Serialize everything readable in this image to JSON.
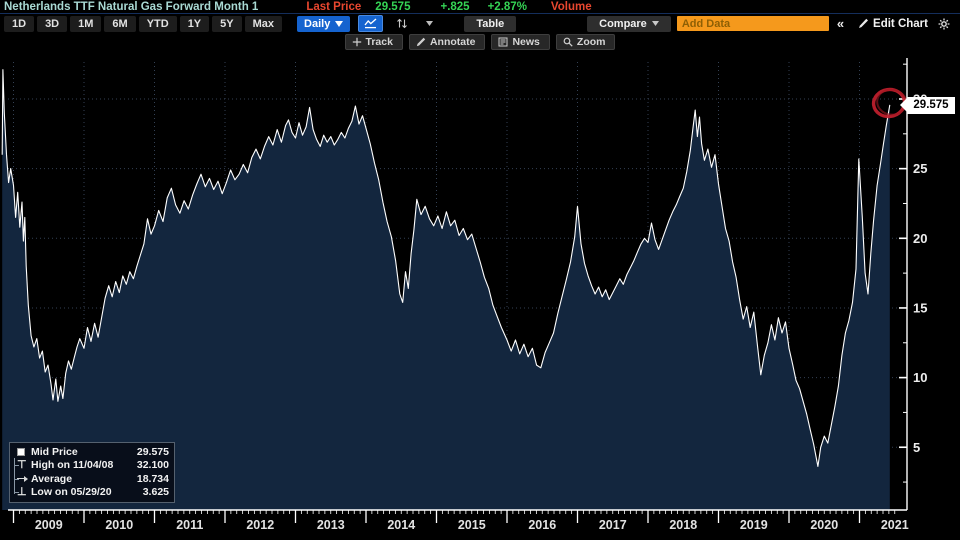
{
  "header": {
    "title": "Netherlands TTF Natural Gas Forward Month 1",
    "last_price_label": "Last Price",
    "last_price": "29.575",
    "change": "+.825",
    "change_pct": "+2.87%",
    "volume_label": "Volume"
  },
  "toolbar": {
    "periods": [
      "1D",
      "3D",
      "1M",
      "6M",
      "YTD",
      "1Y",
      "5Y",
      "Max"
    ],
    "frequency": "Daily",
    "table_label": "Table",
    "compare_label": "Compare",
    "add_data_placeholder": "Add Data",
    "collapse_label": "«",
    "edit_chart_label": "Edit Chart"
  },
  "chart_toolbar": {
    "buttons": [
      {
        "label": "Track",
        "icon": "track-icon"
      },
      {
        "label": "Annotate",
        "icon": "annotate-pencil-icon"
      },
      {
        "label": "News",
        "icon": "news-icon"
      },
      {
        "label": "Zoom",
        "icon": "zoom-magnifier-icon"
      }
    ]
  },
  "legend": {
    "items": [
      {
        "marker": "square",
        "label": "Mid Price",
        "value": "29.575"
      },
      {
        "marker": "high",
        "label": "High on 11/04/08",
        "value": "32.100"
      },
      {
        "marker": "average",
        "label": "Average",
        "value": "18.734"
      },
      {
        "marker": "low",
        "label": "Low on 05/29/20",
        "value": "3.625"
      }
    ]
  },
  "price_tag": "29.575",
  "colors": {
    "background": "#000000",
    "area_fill": "#13263e",
    "line": "#ffffff",
    "grid": "#41526a",
    "axis": "#ffffff",
    "axis_text": "#ededed",
    "annotation_red": "#c2202e",
    "title_teal": "#a9d9d3",
    "label_red": "#e8472f",
    "value_green": "#35d455",
    "accent_blue": "#1563cf",
    "accent_orange": "#f5991c"
  },
  "chart_data": {
    "type": "area",
    "title": "Netherlands TTF Natural Gas Forward Month 1 - Mid Price (Daily)",
    "xlabel": "",
    "ylabel": "",
    "x_ticks": [
      2009,
      2010,
      2011,
      2012,
      2013,
      2014,
      2015,
      2016,
      2017,
      2018,
      2019,
      2020,
      2021
    ],
    "y_ticks": [
      5,
      10,
      15,
      20,
      25,
      30
    ],
    "y_minor_step": 2.5,
    "xlim": [
      2008.83,
      2021.5
    ],
    "ylim": [
      0,
      33
    ],
    "grid": true,
    "legend_position": "bottom-left",
    "stats": {
      "last": 29.575,
      "high": 32.1,
      "high_date": "11/04/08",
      "average": 18.734,
      "low": 3.625,
      "low_date": "05/29/20"
    },
    "annotation": {
      "type": "hand-drawn-circle",
      "x": 2021.43,
      "y": 29.575
    },
    "series": [
      {
        "name": "Mid Price",
        "points": [
          [
            2008.84,
            26.0
          ],
          [
            2008.85,
            32.1
          ],
          [
            2008.87,
            29.0
          ],
          [
            2008.9,
            26.0
          ],
          [
            2008.93,
            24.0
          ],
          [
            2008.96,
            25.0
          ],
          [
            2009.0,
            23.8
          ],
          [
            2009.03,
            21.5
          ],
          [
            2009.06,
            23.3
          ],
          [
            2009.09,
            20.8
          ],
          [
            2009.12,
            22.6
          ],
          [
            2009.14,
            19.8
          ],
          [
            2009.16,
            21.5
          ],
          [
            2009.18,
            18.0
          ],
          [
            2009.21,
            15.2
          ],
          [
            2009.25,
            13.0
          ],
          [
            2009.29,
            12.2
          ],
          [
            2009.33,
            12.8
          ],
          [
            2009.37,
            11.4
          ],
          [
            2009.41,
            11.9
          ],
          [
            2009.45,
            10.4
          ],
          [
            2009.49,
            10.9
          ],
          [
            2009.53,
            9.6
          ],
          [
            2009.56,
            8.4
          ],
          [
            2009.6,
            9.9
          ],
          [
            2009.63,
            8.3
          ],
          [
            2009.67,
            9.4
          ],
          [
            2009.7,
            8.5
          ],
          [
            2009.74,
            10.3
          ],
          [
            2009.78,
            11.2
          ],
          [
            2009.82,
            10.6
          ],
          [
            2009.86,
            11.4
          ],
          [
            2009.9,
            12.2
          ],
          [
            2009.94,
            12.8
          ],
          [
            2010.0,
            12.1
          ],
          [
            2010.05,
            13.6
          ],
          [
            2010.1,
            12.6
          ],
          [
            2010.15,
            13.9
          ],
          [
            2010.2,
            12.9
          ],
          [
            2010.25,
            14.3
          ],
          [
            2010.3,
            15.7
          ],
          [
            2010.35,
            16.6
          ],
          [
            2010.4,
            15.8
          ],
          [
            2010.45,
            16.9
          ],
          [
            2010.5,
            16.1
          ],
          [
            2010.55,
            17.3
          ],
          [
            2010.6,
            16.7
          ],
          [
            2010.65,
            17.6
          ],
          [
            2010.7,
            17.1
          ],
          [
            2010.75,
            18.0
          ],
          [
            2010.8,
            18.8
          ],
          [
            2010.85,
            19.6
          ],
          [
            2010.9,
            21.4
          ],
          [
            2010.95,
            20.3
          ],
          [
            2011.0,
            20.9
          ],
          [
            2011.06,
            22.0
          ],
          [
            2011.12,
            21.2
          ],
          [
            2011.18,
            22.9
          ],
          [
            2011.24,
            23.6
          ],
          [
            2011.3,
            22.4
          ],
          [
            2011.36,
            21.8
          ],
          [
            2011.42,
            22.7
          ],
          [
            2011.48,
            22.1
          ],
          [
            2011.54,
            23.1
          ],
          [
            2011.6,
            23.9
          ],
          [
            2011.66,
            24.6
          ],
          [
            2011.72,
            23.7
          ],
          [
            2011.78,
            24.3
          ],
          [
            2011.84,
            23.5
          ],
          [
            2011.9,
            24.1
          ],
          [
            2011.96,
            23.2
          ],
          [
            2012.02,
            24.0
          ],
          [
            2012.08,
            24.9
          ],
          [
            2012.14,
            24.2
          ],
          [
            2012.2,
            24.6
          ],
          [
            2012.26,
            25.3
          ],
          [
            2012.32,
            24.7
          ],
          [
            2012.38,
            25.8
          ],
          [
            2012.44,
            26.4
          ],
          [
            2012.5,
            25.7
          ],
          [
            2012.56,
            26.6
          ],
          [
            2012.62,
            27.3
          ],
          [
            2012.68,
            26.7
          ],
          [
            2012.74,
            27.8
          ],
          [
            2012.8,
            26.9
          ],
          [
            2012.86,
            28.1
          ],
          [
            2012.9,
            28.5
          ],
          [
            2012.95,
            27.6
          ],
          [
            2013.0,
            27.2
          ],
          [
            2013.05,
            28.3
          ],
          [
            2013.1,
            27.4
          ],
          [
            2013.15,
            28.0
          ],
          [
            2013.2,
            29.4
          ],
          [
            2013.25,
            27.8
          ],
          [
            2013.3,
            27.1
          ],
          [
            2013.35,
            26.6
          ],
          [
            2013.4,
            27.4
          ],
          [
            2013.45,
            26.9
          ],
          [
            2013.5,
            27.3
          ],
          [
            2013.55,
            26.7
          ],
          [
            2013.6,
            27.1
          ],
          [
            2013.65,
            27.6
          ],
          [
            2013.7,
            27.2
          ],
          [
            2013.75,
            27.9
          ],
          [
            2013.8,
            28.4
          ],
          [
            2013.85,
            29.5
          ],
          [
            2013.9,
            28.2
          ],
          [
            2013.95,
            28.8
          ],
          [
            2014.0,
            27.9
          ],
          [
            2014.06,
            26.8
          ],
          [
            2014.12,
            25.4
          ],
          [
            2014.18,
            24.2
          ],
          [
            2014.24,
            22.6
          ],
          [
            2014.3,
            21.2
          ],
          [
            2014.36,
            20.1
          ],
          [
            2014.42,
            18.4
          ],
          [
            2014.48,
            16.0
          ],
          [
            2014.52,
            15.4
          ],
          [
            2014.56,
            17.6
          ],
          [
            2014.6,
            16.4
          ],
          [
            2014.64,
            18.9
          ],
          [
            2014.68,
            20.6
          ],
          [
            2014.72,
            22.8
          ],
          [
            2014.78,
            21.7
          ],
          [
            2014.84,
            22.3
          ],
          [
            2014.9,
            21.4
          ],
          [
            2014.96,
            20.9
          ],
          [
            2015.02,
            21.6
          ],
          [
            2015.08,
            20.7
          ],
          [
            2015.14,
            21.9
          ],
          [
            2015.2,
            20.9
          ],
          [
            2015.26,
            21.3
          ],
          [
            2015.32,
            20.2
          ],
          [
            2015.38,
            20.7
          ],
          [
            2015.44,
            19.9
          ],
          [
            2015.5,
            20.3
          ],
          [
            2015.56,
            19.3
          ],
          [
            2015.62,
            18.3
          ],
          [
            2015.68,
            17.2
          ],
          [
            2015.74,
            16.4
          ],
          [
            2015.8,
            15.2
          ],
          [
            2015.86,
            14.4
          ],
          [
            2015.92,
            13.6
          ],
          [
            2016.0,
            12.7
          ],
          [
            2016.06,
            11.9
          ],
          [
            2016.12,
            12.7
          ],
          [
            2016.18,
            11.7
          ],
          [
            2016.24,
            12.4
          ],
          [
            2016.3,
            11.5
          ],
          [
            2016.36,
            12.1
          ],
          [
            2016.42,
            10.9
          ],
          [
            2016.48,
            10.7
          ],
          [
            2016.54,
            11.8
          ],
          [
            2016.6,
            12.5
          ],
          [
            2016.66,
            13.2
          ],
          [
            2016.72,
            14.6
          ],
          [
            2016.78,
            15.8
          ],
          [
            2016.84,
            17.0
          ],
          [
            2016.9,
            18.3
          ],
          [
            2016.96,
            20.1
          ],
          [
            2017.0,
            22.3
          ],
          [
            2017.05,
            19.6
          ],
          [
            2017.1,
            18.2
          ],
          [
            2017.15,
            17.3
          ],
          [
            2017.2,
            16.6
          ],
          [
            2017.25,
            16.0
          ],
          [
            2017.3,
            16.5
          ],
          [
            2017.35,
            15.8
          ],
          [
            2017.4,
            16.3
          ],
          [
            2017.45,
            15.6
          ],
          [
            2017.5,
            16.1
          ],
          [
            2017.55,
            16.6
          ],
          [
            2017.6,
            17.1
          ],
          [
            2017.65,
            16.7
          ],
          [
            2017.7,
            17.4
          ],
          [
            2017.75,
            17.9
          ],
          [
            2017.8,
            18.4
          ],
          [
            2017.85,
            19.0
          ],
          [
            2017.9,
            19.6
          ],
          [
            2017.95,
            20.0
          ],
          [
            2018.0,
            19.7
          ],
          [
            2018.05,
            21.1
          ],
          [
            2018.1,
            19.9
          ],
          [
            2018.15,
            19.2
          ],
          [
            2018.2,
            19.9
          ],
          [
            2018.25,
            20.6
          ],
          [
            2018.3,
            21.3
          ],
          [
            2018.35,
            21.9
          ],
          [
            2018.4,
            22.4
          ],
          [
            2018.45,
            23.0
          ],
          [
            2018.5,
            23.6
          ],
          [
            2018.55,
            24.8
          ],
          [
            2018.6,
            26.3
          ],
          [
            2018.64,
            28.0
          ],
          [
            2018.67,
            29.2
          ],
          [
            2018.7,
            27.3
          ],
          [
            2018.73,
            28.7
          ],
          [
            2018.76,
            26.8
          ],
          [
            2018.8,
            25.6
          ],
          [
            2018.85,
            26.4
          ],
          [
            2018.9,
            25.1
          ],
          [
            2018.95,
            26.0
          ],
          [
            2019.0,
            23.9
          ],
          [
            2019.05,
            22.3
          ],
          [
            2019.1,
            20.7
          ],
          [
            2019.15,
            19.8
          ],
          [
            2019.2,
            18.3
          ],
          [
            2019.25,
            17.2
          ],
          [
            2019.3,
            15.6
          ],
          [
            2019.35,
            14.2
          ],
          [
            2019.4,
            15.1
          ],
          [
            2019.45,
            13.6
          ],
          [
            2019.5,
            14.7
          ],
          [
            2019.55,
            12.4
          ],
          [
            2019.6,
            10.2
          ],
          [
            2019.65,
            11.6
          ],
          [
            2019.7,
            12.5
          ],
          [
            2019.75,
            13.8
          ],
          [
            2019.8,
            12.7
          ],
          [
            2019.85,
            14.3
          ],
          [
            2019.9,
            13.2
          ],
          [
            2019.95,
            14.0
          ],
          [
            2020.0,
            12.1
          ],
          [
            2020.05,
            11.0
          ],
          [
            2020.1,
            9.8
          ],
          [
            2020.15,
            9.2
          ],
          [
            2020.2,
            8.3
          ],
          [
            2020.25,
            7.4
          ],
          [
            2020.3,
            6.3
          ],
          [
            2020.35,
            5.2
          ],
          [
            2020.41,
            3.625
          ],
          [
            2020.45,
            5.0
          ],
          [
            2020.5,
            5.8
          ],
          [
            2020.55,
            5.3
          ],
          [
            2020.6,
            6.6
          ],
          [
            2020.65,
            7.9
          ],
          [
            2020.7,
            9.4
          ],
          [
            2020.75,
            11.6
          ],
          [
            2020.8,
            13.2
          ],
          [
            2020.85,
            14.1
          ],
          [
            2020.9,
            15.4
          ],
          [
            2020.95,
            17.8
          ],
          [
            2020.99,
            25.7
          ],
          [
            2021.04,
            21.5
          ],
          [
            2021.08,
            17.5
          ],
          [
            2021.12,
            16.0
          ],
          [
            2021.16,
            18.9
          ],
          [
            2021.2,
            21.3
          ],
          [
            2021.25,
            23.8
          ],
          [
            2021.3,
            25.4
          ],
          [
            2021.34,
            26.8
          ],
          [
            2021.38,
            28.1
          ],
          [
            2021.43,
            29.575
          ]
        ]
      }
    ]
  }
}
